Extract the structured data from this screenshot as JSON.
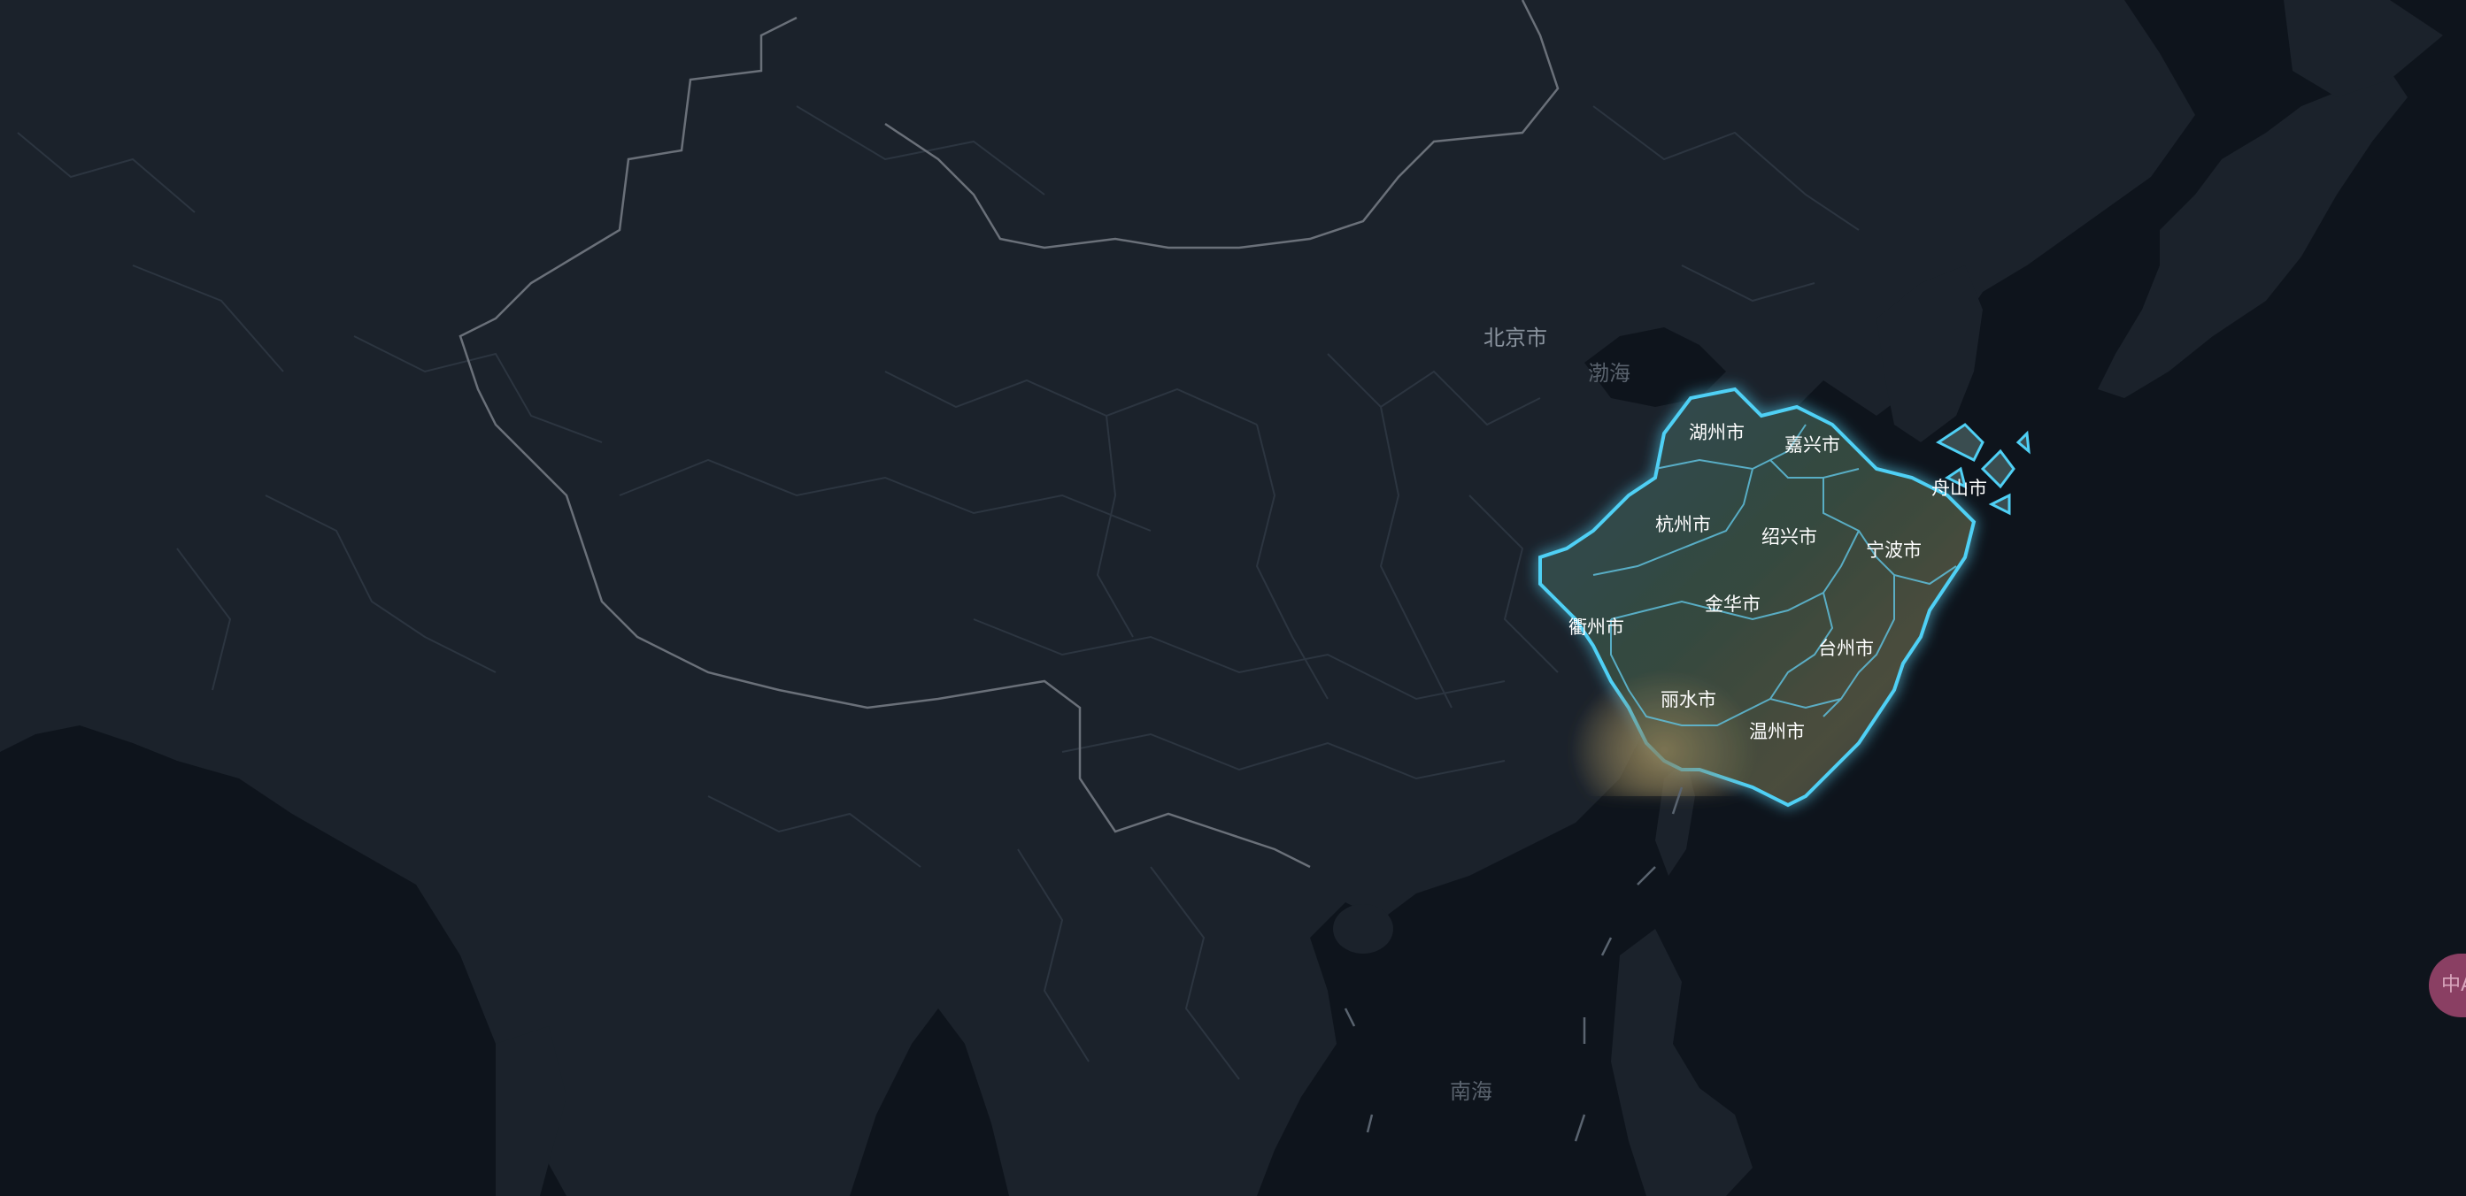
{
  "map": {
    "place_labels": {
      "beijing": "北京市",
      "bohai": "渤海",
      "nanhai": "南海"
    },
    "province_cities": [
      {
        "id": "huzhou",
        "name": "湖州市"
      },
      {
        "id": "jiaxing",
        "name": "嘉兴市"
      },
      {
        "id": "zhoushan",
        "name": "舟山市"
      },
      {
        "id": "hangzhou",
        "name": "杭州市"
      },
      {
        "id": "shaoxing",
        "name": "绍兴市"
      },
      {
        "id": "ningbo",
        "name": "宁波市"
      },
      {
        "id": "jinhua",
        "name": "金华市"
      },
      {
        "id": "quzhou",
        "name": "衢州市"
      },
      {
        "id": "taizhou",
        "name": "台州市"
      },
      {
        "id": "lishui",
        "name": "丽水市"
      },
      {
        "id": "wenzhou",
        "name": "温州市"
      }
    ],
    "colors": {
      "land": "#1b222b",
      "sea": "#0e141c",
      "borders": "#2c3540",
      "national_border": "#7a7f86",
      "highlight_outline": "#4fd0f5",
      "label_dim": "#7f8893",
      "label_bright": "#ffffff"
    }
  },
  "side_button": {
    "label": "中A",
    "color": "#8a3f63"
  }
}
